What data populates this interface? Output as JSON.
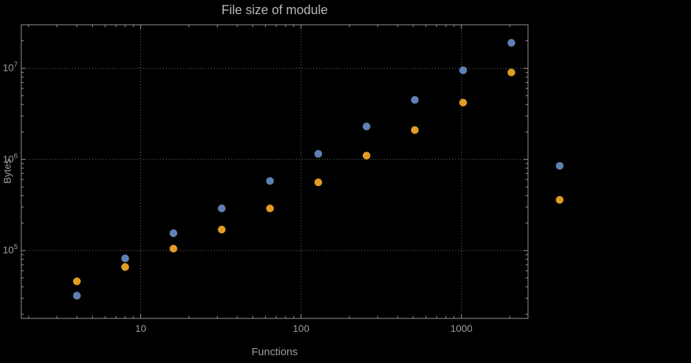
{
  "chart_data": {
    "type": "scatter",
    "title": "File size of module",
    "xlabel": "Functions",
    "ylabel": "Bytes",
    "xscale": "log",
    "yscale": "log",
    "xlim": [
      1.8,
      2600
    ],
    "ylim": [
      18000,
      30000000
    ],
    "grid": "dotted-major",
    "legend": "none",
    "colors": {
      "background": "#000000",
      "frame": "#9a9a9a",
      "grid": "#787878",
      "text": "#9e9e9e",
      "title_text": "#b8b8b8",
      "series_blue": "#5e81b5",
      "series_orange": "#e19c24"
    },
    "x_major_ticks": [
      {
        "v": 10,
        "label": "10"
      },
      {
        "v": 100,
        "label": "100"
      },
      {
        "v": 1000,
        "label": "1000"
      }
    ],
    "x_minor_ticks": [
      2,
      3,
      4,
      5,
      6,
      7,
      8,
      9,
      20,
      30,
      40,
      50,
      60,
      70,
      80,
      90,
      200,
      300,
      400,
      500,
      600,
      700,
      800,
      900,
      2000
    ],
    "y_major_ticks": [
      {
        "v": 100000,
        "base": "10",
        "exp": "5"
      },
      {
        "v": 1000000,
        "base": "10",
        "exp": "6"
      },
      {
        "v": 10000000,
        "base": "10",
        "exp": "7"
      }
    ],
    "y_minor_ticks": [
      20000,
      30000,
      40000,
      50000,
      60000,
      70000,
      80000,
      90000,
      200000,
      300000,
      400000,
      500000,
      600000,
      700000,
      800000,
      900000,
      2000000,
      3000000,
      4000000,
      5000000,
      6000000,
      7000000,
      8000000,
      9000000,
      20000000
    ],
    "series": [
      {
        "name": "blue",
        "color": "#5e81b5",
        "x": [
          4,
          8,
          16,
          32,
          64,
          128,
          256,
          512,
          1024,
          2048,
          4096
        ],
        "y": [
          32000,
          82000,
          155000,
          290000,
          580000,
          1150000,
          2300000,
          4500000,
          9500000,
          19000000,
          850000
        ]
      },
      {
        "name": "orange",
        "color": "#e19c24",
        "x": [
          4,
          8,
          16,
          32,
          64,
          128,
          256,
          512,
          1024,
          2048,
          4096
        ],
        "y": [
          46000,
          66000,
          105000,
          170000,
          290000,
          560000,
          1100000,
          2100000,
          4200000,
          9000000,
          360000
        ]
      }
    ]
  }
}
